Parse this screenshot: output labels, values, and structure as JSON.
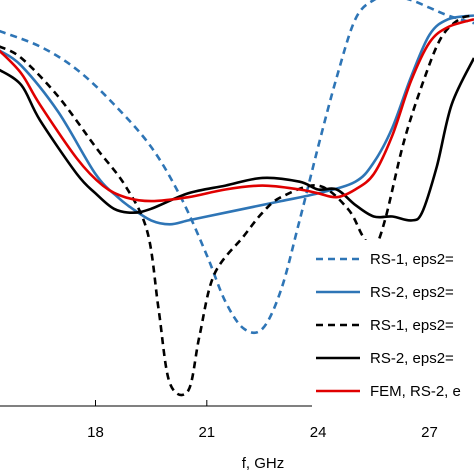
{
  "chart_data": {
    "type": "line",
    "title": "",
    "xlabel": "f, GHz",
    "ylabel": "",
    "xlim": [
      15.4,
      28.2
    ],
    "ylim": [
      -1.0,
      0.05
    ],
    "x_ticks": [
      18,
      21,
      24,
      27
    ],
    "x_tick_labels": [
      "18",
      "21",
      "24",
      "27"
    ],
    "grid": false,
    "legend_position": "lower-right",
    "series": [
      {
        "name": "RS-1, eps2=",
        "color": "#2e75b6",
        "dash": "dashed",
        "points": [
          [
            15.4,
            -0.03
          ],
          [
            16.5,
            -0.07
          ],
          [
            17.5,
            -0.13
          ],
          [
            18.5,
            -0.22
          ],
          [
            19.5,
            -0.33
          ],
          [
            20.3,
            -0.46
          ],
          [
            21.0,
            -0.61
          ],
          [
            21.5,
            -0.73
          ],
          [
            22.0,
            -0.8
          ],
          [
            22.5,
            -0.8
          ],
          [
            23.0,
            -0.7
          ],
          [
            23.5,
            -0.52
          ],
          [
            24.0,
            -0.33
          ],
          [
            24.5,
            -0.15
          ],
          [
            25.0,
            0.0
          ],
          [
            25.5,
            0.05
          ],
          [
            26.0,
            0.06
          ],
          [
            26.5,
            0.05
          ],
          [
            27.0,
            0.03
          ],
          [
            27.5,
            0.01
          ],
          [
            28.2,
            -0.01
          ]
        ]
      },
      {
        "name": "RS-2, eps2=",
        "color": "#2e75b6",
        "dash": "solid",
        "points": [
          [
            15.4,
            -0.08
          ],
          [
            16.0,
            -0.12
          ],
          [
            17.0,
            -0.24
          ],
          [
            18.0,
            -0.4
          ],
          [
            18.6,
            -0.46
          ],
          [
            19.0,
            -0.49
          ],
          [
            19.5,
            -0.52
          ],
          [
            20.0,
            -0.53
          ],
          [
            20.5,
            -0.52
          ],
          [
            21.0,
            -0.51
          ],
          [
            22.0,
            -0.49
          ],
          [
            23.0,
            -0.47
          ],
          [
            24.0,
            -0.45
          ],
          [
            25.0,
            -0.42
          ],
          [
            25.5,
            -0.37
          ],
          [
            26.0,
            -0.28
          ],
          [
            26.5,
            -0.15
          ],
          [
            27.0,
            -0.04
          ],
          [
            27.5,
            0.0
          ],
          [
            28.2,
            0.01
          ]
        ]
      },
      {
        "name": "RS-1, eps2=",
        "color": "#000000",
        "dash": "dashed",
        "points": [
          [
            15.4,
            -0.07
          ],
          [
            16.0,
            -0.1
          ],
          [
            17.0,
            -0.2
          ],
          [
            18.0,
            -0.33
          ],
          [
            18.8,
            -0.43
          ],
          [
            19.4,
            -0.55
          ],
          [
            19.7,
            -0.75
          ],
          [
            20.0,
            -0.94
          ],
          [
            20.5,
            -0.96
          ],
          [
            20.8,
            -0.82
          ],
          [
            21.2,
            -0.66
          ],
          [
            22.0,
            -0.56
          ],
          [
            22.5,
            -0.5
          ],
          [
            23.0,
            -0.46
          ],
          [
            24.0,
            -0.43
          ],
          [
            24.8,
            -0.49
          ],
          [
            25.2,
            -0.56
          ],
          [
            25.5,
            -0.59
          ],
          [
            25.8,
            -0.52
          ],
          [
            26.3,
            -0.32
          ],
          [
            26.8,
            -0.17
          ],
          [
            27.3,
            -0.05
          ],
          [
            27.8,
            0.0
          ],
          [
            28.2,
            0.01
          ]
        ]
      },
      {
        "name": "RS-2, eps2=",
        "color": "#000000",
        "dash": "solid",
        "points": [
          [
            15.4,
            -0.13
          ],
          [
            16.0,
            -0.17
          ],
          [
            16.5,
            -0.26
          ],
          [
            17.5,
            -0.4
          ],
          [
            18.0,
            -0.45
          ],
          [
            18.5,
            -0.49
          ],
          [
            19.0,
            -0.5
          ],
          [
            19.5,
            -0.49
          ],
          [
            20.5,
            -0.45
          ],
          [
            21.5,
            -0.43
          ],
          [
            22.5,
            -0.41
          ],
          [
            23.5,
            -0.42
          ],
          [
            24.0,
            -0.44
          ],
          [
            24.5,
            -0.44
          ],
          [
            25.0,
            -0.48
          ],
          [
            25.5,
            -0.51
          ],
          [
            26.0,
            -0.51
          ],
          [
            26.5,
            -0.52
          ],
          [
            26.8,
            -0.5
          ],
          [
            27.2,
            -0.38
          ],
          [
            27.6,
            -0.22
          ],
          [
            28.2,
            -0.1
          ]
        ]
      },
      {
        "name": "FEM, RS-2, e",
        "color": "#e00000",
        "dash": "solid",
        "points": [
          [
            15.4,
            -0.08
          ],
          [
            16.0,
            -0.14
          ],
          [
            16.5,
            -0.22
          ],
          [
            17.5,
            -0.36
          ],
          [
            18.2,
            -0.43
          ],
          [
            18.8,
            -0.46
          ],
          [
            19.5,
            -0.47
          ],
          [
            20.5,
            -0.46
          ],
          [
            21.5,
            -0.44
          ],
          [
            22.5,
            -0.43
          ],
          [
            23.5,
            -0.44
          ],
          [
            24.0,
            -0.45
          ],
          [
            24.5,
            -0.46
          ],
          [
            25.0,
            -0.44
          ],
          [
            25.5,
            -0.4
          ],
          [
            26.0,
            -0.3
          ],
          [
            26.5,
            -0.16
          ],
          [
            27.0,
            -0.06
          ],
          [
            27.5,
            -0.02
          ],
          [
            28.2,
            0.0
          ]
        ]
      }
    ]
  }
}
